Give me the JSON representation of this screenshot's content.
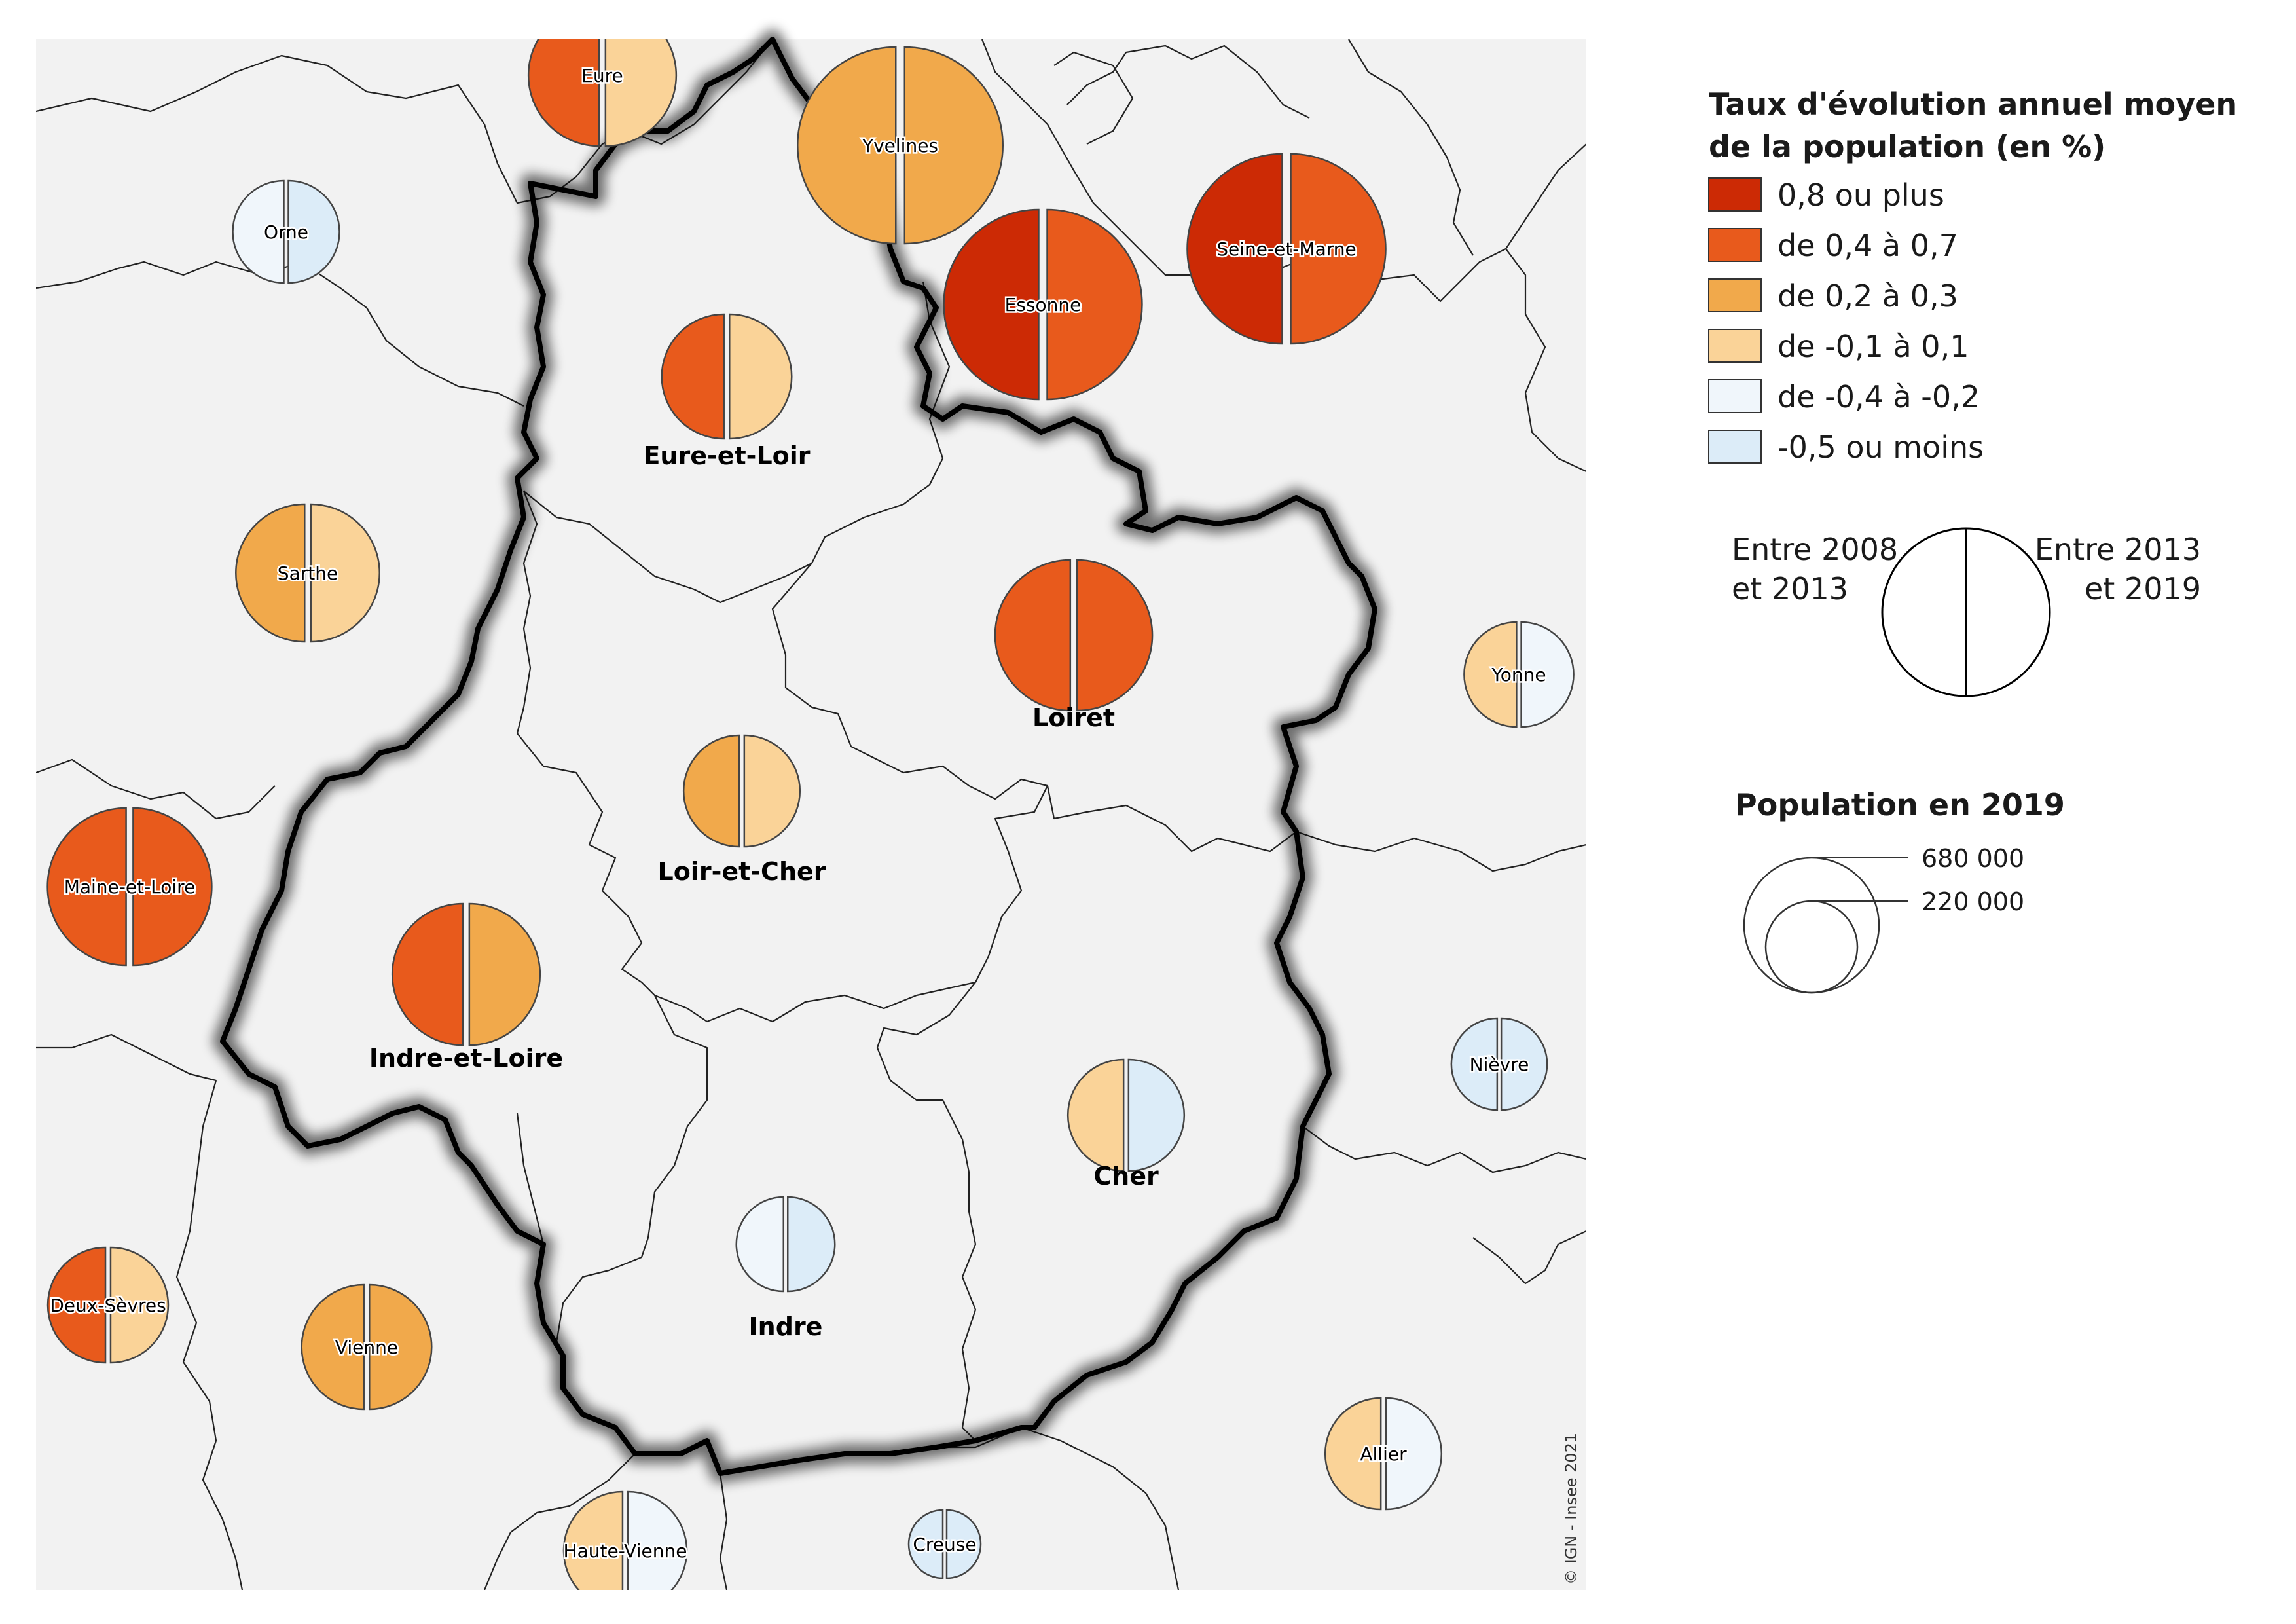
{
  "legend": {
    "rate_title_line1": "Taux d'évolution annuel moyen",
    "rate_title_line2": "de la population (en %)",
    "classes": [
      {
        "label": "0,8 ou plus",
        "color": "#cc2a05"
      },
      {
        "label": "de 0,4 à 0,7",
        "color": "#e85a1c"
      },
      {
        "label": "de 0,2 à 0,3",
        "color": "#f1a94b"
      },
      {
        "label": "de -0,1 à 0,1",
        "color": "#fad398"
      },
      {
        "label": "de -0,4 à -0,2",
        "color": "#f0f6fb"
      },
      {
        "label": "-0,5 ou moins",
        "color": "#dcecf8"
      }
    ],
    "period_left_line1": "Entre 2008",
    "period_left_line2": "et 2013",
    "period_right_line1": "Entre 2013",
    "period_right_line2": "et 2019",
    "population_title": "Population en 2019",
    "population_large": "680 000",
    "population_small": "220 000"
  },
  "credit": "© IGN - Insee 2021",
  "departments": [
    {
      "name": "Eure",
      "left_class": 1,
      "right_class": 3,
      "in_region": false
    },
    {
      "name": "Yvelines",
      "left_class": 2,
      "right_class": 2,
      "in_region": false
    },
    {
      "name": "Orne",
      "left_class": 4,
      "right_class": 5,
      "in_region": false
    },
    {
      "name": "Essonne",
      "left_class": 0,
      "right_class": 1,
      "in_region": false
    },
    {
      "name": "Seine-et-Marne",
      "left_class": 0,
      "right_class": 1,
      "in_region": false
    },
    {
      "name": "Eure-et-Loir",
      "left_class": 1,
      "right_class": 3,
      "in_region": true
    },
    {
      "name": "Sarthe",
      "left_class": 2,
      "right_class": 3,
      "in_region": false
    },
    {
      "name": "Loiret",
      "left_class": 1,
      "right_class": 1,
      "in_region": true
    },
    {
      "name": "Yonne",
      "left_class": 3,
      "right_class": 4,
      "in_region": false
    },
    {
      "name": "Loir-et-Cher",
      "left_class": 2,
      "right_class": 3,
      "in_region": true
    },
    {
      "name": "Maine-et-Loire",
      "left_class": 1,
      "right_class": 1,
      "in_region": false
    },
    {
      "name": "Indre-et-Loire",
      "left_class": 1,
      "right_class": 2,
      "in_region": true
    },
    {
      "name": "Cher",
      "left_class": 3,
      "right_class": 5,
      "in_region": true
    },
    {
      "name": "Nièvre",
      "left_class": 5,
      "right_class": 5,
      "in_region": false
    },
    {
      "name": "Indre",
      "left_class": 4,
      "right_class": 5,
      "in_region": true
    },
    {
      "name": "Deux-Sèvres",
      "left_class": 1,
      "right_class": 3,
      "in_region": false
    },
    {
      "name": "Vienne",
      "left_class": 2,
      "right_class": 2,
      "in_region": false
    },
    {
      "name": "Allier",
      "left_class": 3,
      "right_class": 4,
      "in_region": false
    },
    {
      "name": "Haute-Vienne",
      "left_class": 3,
      "right_class": 4,
      "in_region": false
    },
    {
      "name": "Creuse",
      "left_class": 5,
      "right_class": 5,
      "in_region": false
    }
  ]
}
